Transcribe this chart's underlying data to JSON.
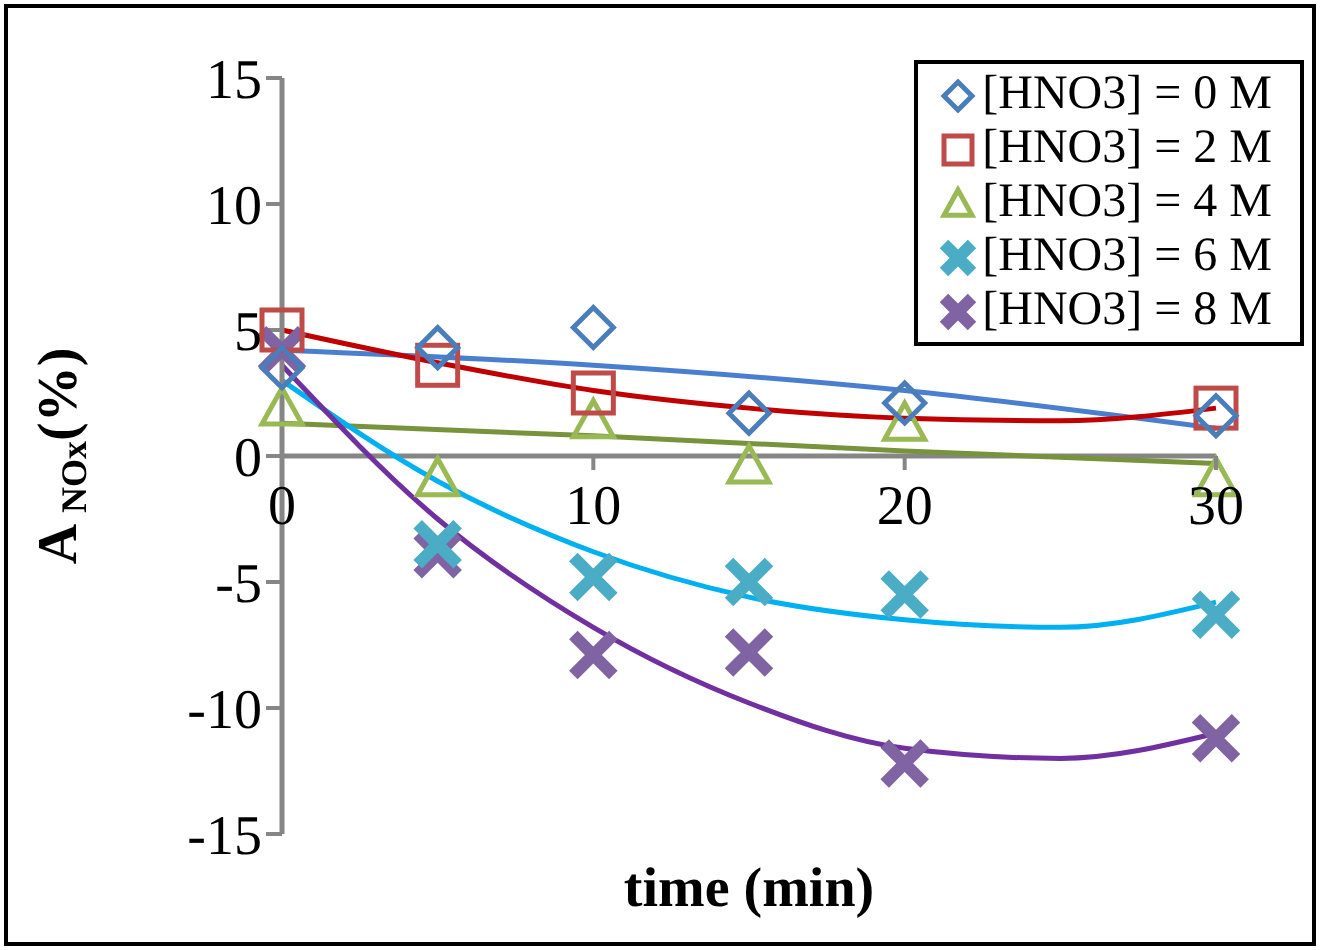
{
  "chart_data": {
    "type": "scatter",
    "xlabel": "time (min)",
    "ylabel": "A $_{NOx}$(%)",
    "x": [
      0,
      5,
      10,
      15,
      20,
      30
    ],
    "xlim": [
      0,
      30
    ],
    "xticks": [
      0,
      10,
      20,
      30
    ],
    "ylim": [
      -15,
      15
    ],
    "yticks": [
      -15,
      -10,
      -5,
      0,
      5,
      10,
      15
    ],
    "grid": false,
    "legend": "top right",
    "series": [
      {
        "name": "[HNO3] = 0 M",
        "marker": "diamond",
        "color": "#4a7ebb",
        "values": [
          3.5,
          4.3,
          5.1,
          1.7,
          2.1,
          1.6
        ]
      },
      {
        "name": "[HNO3] = 2 M",
        "marker": "square",
        "color": "#be4b48",
        "values": [
          5.0,
          3.6,
          2.5,
          null,
          null,
          1.9
        ]
      },
      {
        "name": "[HNO3] = 4 M",
        "marker": "triangle",
        "color": "#98b954",
        "values": [
          1.9,
          -0.9,
          1.4,
          -0.4,
          1.3,
          -0.9
        ]
      },
      {
        "name": "[HNO3] = 6 M",
        "marker": "cross",
        "color": "#4bacc6",
        "values": [
          null,
          -3.5,
          -4.8,
          -5.0,
          -5.5,
          -6.3
        ]
      },
      {
        "name": "[HNO3] = 8 M",
        "marker": "cross",
        "color": "#7f63a2",
        "values": [
          4.2,
          -3.9,
          -7.9,
          -7.8,
          -12.2,
          -11.2
        ]
      },
      {
        "type": "line",
        "marker": "none",
        "color": "#4a7fd0",
        "x": [
          0,
          10,
          20,
          30
        ],
        "values": [
          4.2,
          3.6,
          2.6,
          1.1
        ]
      },
      {
        "type": "line",
        "marker": "none",
        "color": "#c00000",
        "x": [
          0,
          5,
          10,
          15,
          20,
          25,
          30
        ],
        "values": [
          5.0,
          3.7,
          2.6,
          1.9,
          1.5,
          1.4,
          1.9
        ]
      },
      {
        "type": "line",
        "marker": "none",
        "color": "#77933c",
        "x": [
          0,
          10,
          20,
          30
        ],
        "values": [
          1.3,
          0.8,
          0.2,
          -0.3
        ]
      },
      {
        "type": "line",
        "marker": "none",
        "color": "#00b0f0",
        "x": [
          0,
          5,
          10,
          15,
          20,
          25,
          30
        ],
        "values": [
          3.0,
          -1.0,
          -3.8,
          -5.6,
          -6.5,
          -6.8,
          -5.8
        ]
      },
      {
        "type": "line",
        "marker": "none",
        "color": "#7030a0",
        "x": [
          0,
          5,
          10,
          15,
          20,
          25,
          30
        ],
        "values": [
          3.6,
          -2.5,
          -6.8,
          -9.8,
          -11.6,
          -12.0,
          -11.0
        ]
      }
    ]
  }
}
